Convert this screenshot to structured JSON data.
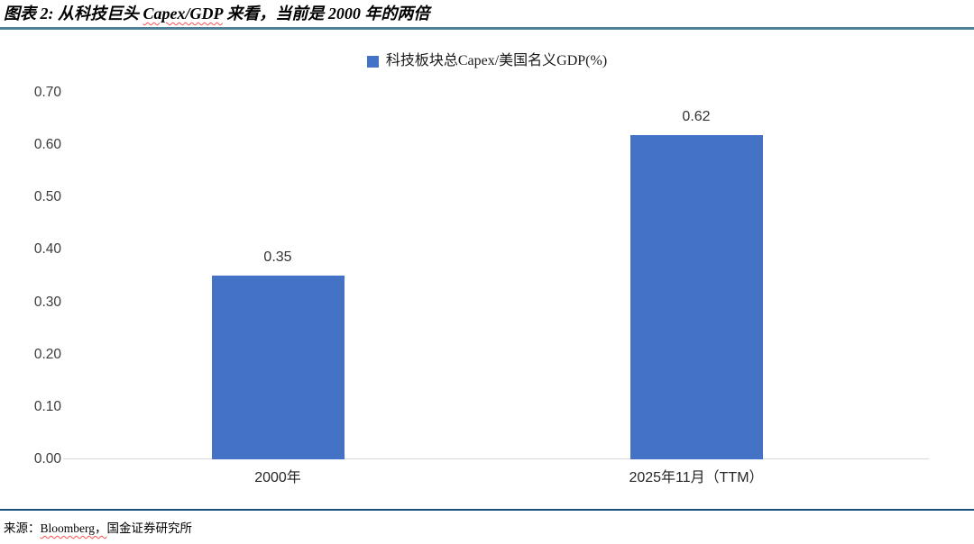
{
  "figure": {
    "title": {
      "prefix": "图表 2: 从科技巨头 ",
      "spellchecked": "Capex/GDP",
      "suffix": " 来看，当前是 2000 年的两倍"
    },
    "source": {
      "label": "来源：",
      "spellchecked": "Bloomberg，",
      "suffix": "国金证券研究所"
    }
  },
  "chart_data": {
    "type": "bar",
    "title": "",
    "xlabel": "",
    "ylabel": "",
    "legend": "科技板块总Capex/美国名义GDP(%)",
    "legend_position": "top-center",
    "categories": [
      "2000年",
      "2025年11月（TTM）"
    ],
    "values": [
      0.35,
      0.62
    ],
    "value_labels": [
      "0.35",
      "0.62"
    ],
    "ylim": [
      0,
      0.7
    ],
    "yticks": [
      0,
      0.1,
      0.2,
      0.3,
      0.4,
      0.5,
      0.6,
      0.7
    ],
    "ytick_labels": [
      "0.00",
      "0.10",
      "0.20",
      "0.30",
      "0.40",
      "0.50",
      "0.60",
      "0.70"
    ],
    "grid": false,
    "bar_color": "#4472C4"
  },
  "colors": {
    "bar": "#4472C4",
    "title_rule": "#4e7f9b",
    "bottom_rule": "#17507e",
    "axis_line": "#d9d9d9",
    "spellcheck_underline": "#ff5050"
  }
}
